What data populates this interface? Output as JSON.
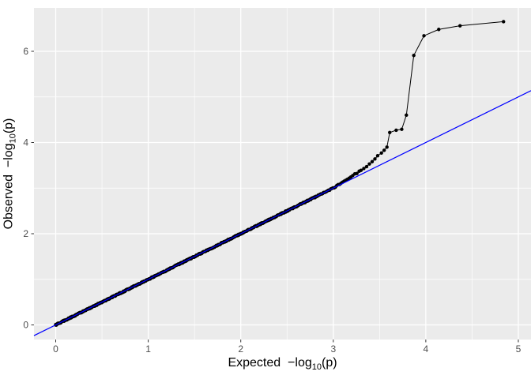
{
  "chart_data": {
    "type": "scatter",
    "subtype": "qq-plot",
    "title": "",
    "xlabel": "Expected −log10(p)",
    "ylabel": "Observed −log10(p)",
    "xlabel_parts": {
      "prefix": "Expected  −log",
      "sub": "10",
      "suffix": "(p)"
    },
    "ylabel_parts": {
      "prefix": "Observed  −log",
      "sub": "10",
      "suffix": "(p)"
    },
    "xlim": [
      -0.235,
      5.137
    ],
    "ylim": [
      -0.32,
      6.952
    ],
    "x_major_ticks": [
      0,
      1,
      2,
      3,
      4,
      5
    ],
    "x_tick_labels": [
      "0",
      "1",
      "2",
      "3",
      "4",
      "5"
    ],
    "x_minor_ticks": [
      0.5,
      1.5,
      2.5,
      3.5,
      4.5
    ],
    "y_major_ticks": [
      0,
      2,
      4,
      6
    ],
    "y_tick_labels": [
      "0",
      "2",
      "4",
      "6"
    ],
    "y_minor_ticks": [
      1,
      3,
      5
    ],
    "grid": true,
    "legend": "none",
    "panel_background": "#EBEBEB",
    "grid_color": "#FFFFFF",
    "grid_major_width": 1.3,
    "grid_minor_width": 0.65,
    "tick_color": "#333333",
    "tick_label_color": "#4D4D4D",
    "axis_title_color": "#000000",
    "point_color": "#000000",
    "point_radius": 2.2,
    "line_color": "#000000",
    "line_width": 1,
    "reference_line": {
      "slope": 1,
      "intercept": 0,
      "color": "#0000FF",
      "width": 1.2
    },
    "diagonal_band": {
      "description": "dense run of ~550 overlapping points lying on the identity line y≈x from (0,0) to (3.28,3.36), drawn procedurally with tiny jitter; spacing widens toward the tail like -log10 quantiles",
      "x_start": 0,
      "x_end": 3.28,
      "min_step": 0.006,
      "density_k": 1.28e-05,
      "wiggle": 0.012,
      "bias_start": 3.0,
      "bias_slope": 0.3,
      "seed": 97531
    },
    "tail_points": [
      [
        3.3,
        3.39
      ],
      [
        3.33,
        3.43
      ],
      [
        3.36,
        3.47
      ],
      [
        3.39,
        3.53
      ],
      [
        3.42,
        3.58
      ],
      [
        3.45,
        3.64
      ],
      [
        3.48,
        3.71
      ],
      [
        3.52,
        3.77
      ],
      [
        3.55,
        3.83
      ],
      [
        3.58,
        3.9
      ],
      [
        3.61,
        4.22
      ],
      [
        3.68,
        4.27
      ],
      [
        3.74,
        4.29
      ],
      [
        3.79,
        4.6
      ],
      [
        3.87,
        5.91
      ],
      [
        3.98,
        6.34
      ],
      [
        4.14,
        6.48
      ],
      [
        4.37,
        6.56
      ],
      [
        4.84,
        6.65
      ]
    ]
  }
}
